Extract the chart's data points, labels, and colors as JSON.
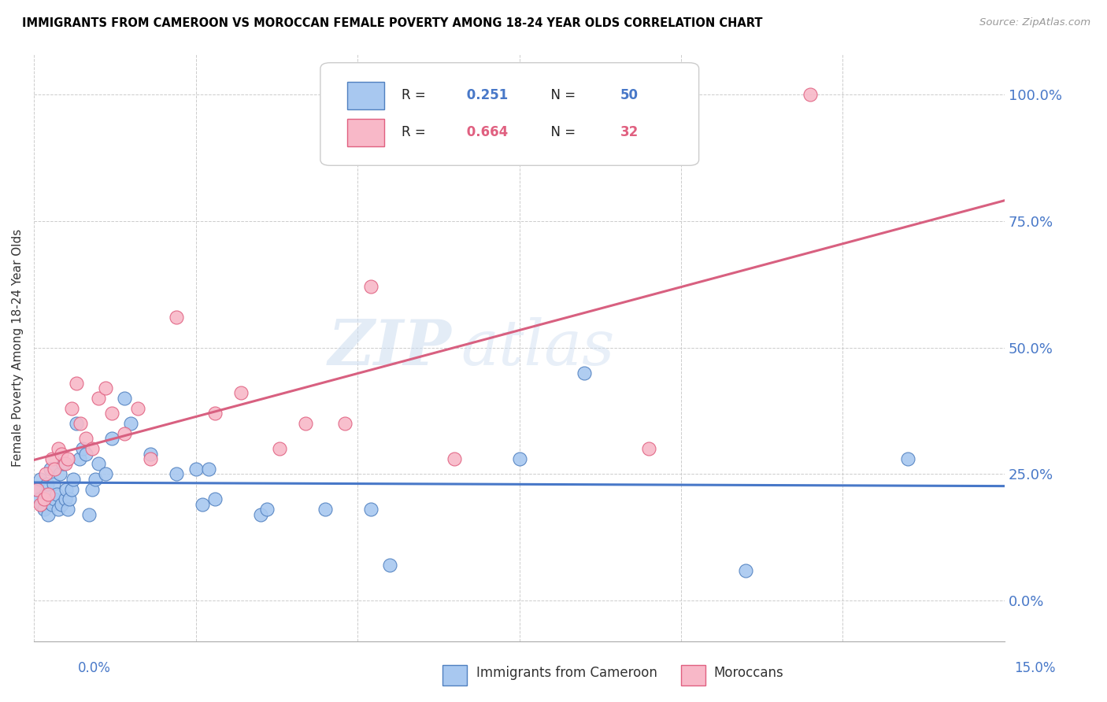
{
  "title": "IMMIGRANTS FROM CAMEROON VS MOROCCAN FEMALE POVERTY AMONG 18-24 YEAR OLDS CORRELATION CHART",
  "source": "Source: ZipAtlas.com",
  "ylabel": "Female Poverty Among 18-24 Year Olds",
  "watermark_zip": "ZIP",
  "watermark_atlas": "atlas",
  "legend_1_label": "Immigrants from Cameroon",
  "legend_2_label": "Moroccans",
  "R1": "0.251",
  "N1": "50",
  "R2": "0.664",
  "N2": "32",
  "color_blue_fill": "#a8c8f0",
  "color_blue_edge": "#5080c0",
  "color_pink_fill": "#f8b8c8",
  "color_pink_edge": "#e06080",
  "color_line_blue": "#4878c8",
  "color_line_pink": "#d86080",
  "xlim": [
    0.0,
    15.0
  ],
  "ylim": [
    -8.0,
    108.0
  ],
  "yticks": [
    0.0,
    25.0,
    50.0,
    75.0,
    100.0
  ],
  "xtick_positions": [
    0.0,
    2.5,
    5.0,
    7.5,
    10.0,
    12.5,
    15.0
  ],
  "blue_x": [
    0.05,
    0.08,
    0.1,
    0.12,
    0.15,
    0.18,
    0.2,
    0.22,
    0.25,
    0.28,
    0.3,
    0.32,
    0.35,
    0.38,
    0.4,
    0.42,
    0.45,
    0.48,
    0.5,
    0.52,
    0.55,
    0.58,
    0.6,
    0.65,
    0.7,
    0.75,
    0.8,
    0.85,
    0.9,
    0.95,
    1.0,
    1.1,
    1.2,
    1.4,
    1.5,
    1.8,
    2.2,
    2.5,
    2.6,
    2.7,
    2.8,
    3.5,
    3.6,
    4.5,
    5.2,
    5.5,
    7.5,
    8.5,
    11.0,
    13.5
  ],
  "blue_y": [
    22,
    20,
    24,
    19,
    18,
    21,
    23,
    17,
    26,
    19,
    23,
    20,
    21,
    18,
    25,
    19,
    27,
    20,
    22,
    18,
    20,
    22,
    24,
    35,
    28,
    30,
    29,
    17,
    22,
    24,
    27,
    25,
    32,
    40,
    35,
    29,
    25,
    26,
    19,
    26,
    20,
    17,
    18,
    18,
    18,
    7,
    28,
    45,
    6,
    28
  ],
  "pink_x": [
    0.05,
    0.1,
    0.15,
    0.18,
    0.22,
    0.28,
    0.32,
    0.38,
    0.42,
    0.48,
    0.52,
    0.58,
    0.65,
    0.72,
    0.8,
    0.9,
    1.0,
    1.1,
    1.2,
    1.4,
    1.6,
    1.8,
    2.2,
    2.8,
    3.2,
    3.8,
    4.2,
    4.8,
    5.2,
    6.5,
    9.5,
    12.0
  ],
  "pink_y": [
    22,
    19,
    20,
    25,
    21,
    28,
    26,
    30,
    29,
    27,
    28,
    38,
    43,
    35,
    32,
    30,
    40,
    42,
    37,
    33,
    38,
    28,
    56,
    37,
    41,
    30,
    35,
    35,
    62,
    28,
    30,
    100
  ]
}
